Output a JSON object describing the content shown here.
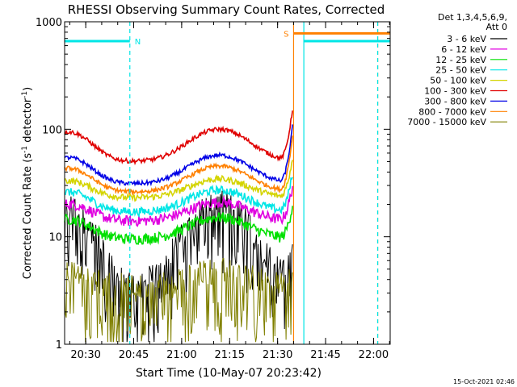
{
  "chart_data": {
    "type": "line",
    "title": "RHESSI Observing Summary Count Rates, Corrected",
    "xlabel": "Start Time (10-May-07 20:23:42)",
    "ylabel_main": "Corrected Count Rate (s",
    "ylabel_sup1": "-1",
    "ylabel_mid": " detector",
    "ylabel_sup2": "-1",
    "ylabel_end": ")",
    "ylim": [
      1,
      1000
    ],
    "yscale": "log",
    "y_ticks": [
      {
        "value": 1,
        "label": "1"
      },
      {
        "value": 10,
        "label": "10"
      },
      {
        "value": 100,
        "label": "100"
      },
      {
        "value": 1000,
        "label": "1000"
      }
    ],
    "x_range_min": [
      -0.3,
      101.5
    ],
    "x_ticks": [
      {
        "value": 6.3,
        "label": "20:30"
      },
      {
        "value": 21.3,
        "label": "20:45"
      },
      {
        "value": 36.3,
        "label": "21:00"
      },
      {
        "value": 51.3,
        "label": "21:15"
      },
      {
        "value": 66.3,
        "label": "21:30"
      },
      {
        "value": 81.3,
        "label": "21:45"
      },
      {
        "value": 96.3,
        "label": "22:00"
      }
    ],
    "legend_header": [
      "Det 1,3,4,5,6,9,",
      "Att 0"
    ],
    "series": [
      {
        "name": "3 - 6 keV",
        "color": "#000000",
        "baseline": 2.4,
        "peak_factor": 6.0,
        "noise": 0.09,
        "flare": 5
      },
      {
        "name": "6 - 12 keV",
        "color": "#e000e0",
        "baseline": 14,
        "peak_factor": 1.5,
        "noise": 0.05,
        "flare": 30
      },
      {
        "name": "12 - 25 keV",
        "color": "#00e000",
        "baseline": 9.5,
        "peak_factor": 1.6,
        "noise": 0.05,
        "flare": 20
      },
      {
        "name": "25 - 50 keV",
        "color": "#00e6e6",
        "baseline": 17,
        "peak_factor": 1.6,
        "noise": 0.04,
        "flare": 40
      },
      {
        "name": "50 - 100 keV",
        "color": "#d4d400",
        "baseline": 23,
        "peak_factor": 1.5,
        "noise": 0.03,
        "flare": 55
      },
      {
        "name": "100 - 300 keV",
        "color": "#e00000",
        "baseline": 50,
        "peak_factor": 2.0,
        "noise": 0.02,
        "flare": 160
      },
      {
        "name": "300 - 800 keV",
        "color": "#0000e6",
        "baseline": 31,
        "peak_factor": 1.85,
        "noise": 0.02,
        "flare": 110
      },
      {
        "name": "800 - 7000 keV",
        "color": "#ff8000",
        "baseline": 26,
        "peak_factor": 1.75,
        "noise": 0.02,
        "flare": 90
      },
      {
        "name": "7000 - 15000 keV",
        "color": "#808000",
        "baseline": 2.4,
        "peak_factor": 1.4,
        "noise": 0.12,
        "flare": 3
      }
    ],
    "flags": [
      {
        "label": "N",
        "color": "#00e6e6",
        "x_start": -0.3,
        "x_end": 20.1,
        "level": 660
      },
      {
        "label": "S",
        "color": "#ff8000",
        "x_start": 71.3,
        "x_end": 101.5,
        "level": 780
      },
      {
        "label": "",
        "color": "#00e6e6",
        "x_start": 74.5,
        "x_end": 101.5,
        "level": 660
      }
    ],
    "vlines": [
      {
        "x": 20.1,
        "color": "#00e6e6",
        "dashed": true
      },
      {
        "x": 71.3,
        "color": "#ff8000",
        "dashed": false
      },
      {
        "x": 74.5,
        "color": "#00e6e6",
        "dashed": false
      },
      {
        "x": 97.6,
        "color": "#ff8000",
        "dashed": true
      },
      {
        "x": 97.6,
        "color": "#00e6e6",
        "dashed": true
      }
    ],
    "timestamp": "15-Oct-2021 02:46"
  }
}
